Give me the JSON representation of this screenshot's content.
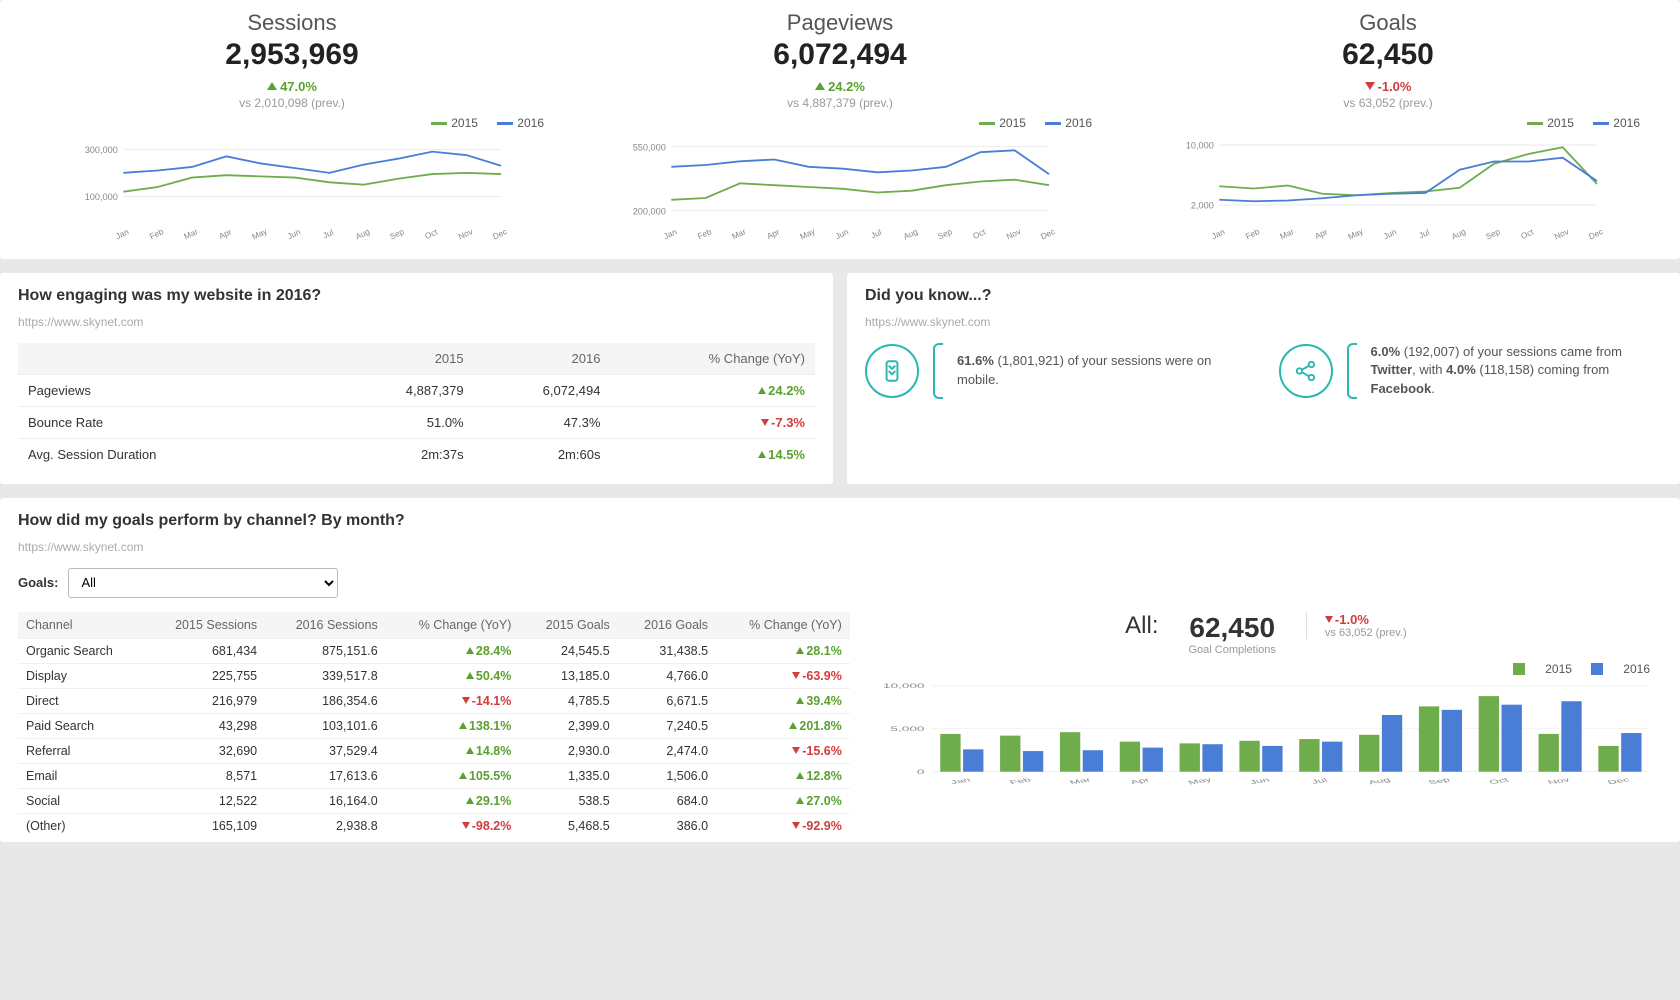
{
  "colors": {
    "series2015": "#6fad4c",
    "series2016": "#4a7dd6",
    "grid": "#e8e8e8",
    "axis": "#999"
  },
  "months": [
    "Jan",
    "Feb",
    "Mar",
    "Apr",
    "May",
    "Jun",
    "Jul",
    "Aug",
    "Sep",
    "Oct",
    "Nov",
    "Dec"
  ],
  "legend_labels": {
    "y2015": "2015",
    "y2016": "2016"
  },
  "metrics": {
    "sessions": {
      "title": "Sessions",
      "value": "2,953,969",
      "delta_pct": "47.0%",
      "delta_dir": "up",
      "delta_color": "green",
      "vs_prev": "vs 2,010,098 (prev.)",
      "yticks": [
        "100,000",
        "300,000"
      ],
      "ylim": [
        0,
        350000
      ],
      "s2015": [
        120000,
        140000,
        180000,
        190000,
        185000,
        180000,
        160000,
        150000,
        175000,
        195000,
        200000,
        195000
      ],
      "s2016": [
        200000,
        210000,
        225000,
        270000,
        240000,
        220000,
        200000,
        235000,
        260000,
        290000,
        275000,
        230000
      ]
    },
    "pageviews": {
      "title": "Pageviews",
      "value": "6,072,494",
      "delta_pct": "24.2%",
      "delta_dir": "up",
      "delta_color": "green",
      "vs_prev": "vs 4,887,379 (prev.)",
      "yticks": [
        "200,000",
        "550,000"
      ],
      "ylim": [
        150000,
        600000
      ],
      "s2015": [
        260000,
        270000,
        350000,
        340000,
        330000,
        320000,
        300000,
        310000,
        340000,
        360000,
        370000,
        340000
      ],
      "s2016": [
        440000,
        450000,
        470000,
        480000,
        440000,
        430000,
        410000,
        420000,
        440000,
        520000,
        530000,
        400000
      ]
    },
    "goals": {
      "title": "Goals",
      "value": "62,450",
      "delta_pct": "-1.0%",
      "delta_dir": "down",
      "delta_color": "red",
      "vs_prev": "vs 63,052 (prev.)",
      "yticks": [
        "2,000",
        "10,000"
      ],
      "ylim": [
        0,
        11000
      ],
      "s2015": [
        4500,
        4200,
        4600,
        3500,
        3300,
        3600,
        3800,
        4300,
        7500,
        8800,
        9700,
        4800
      ],
      "s2016": [
        2700,
        2500,
        2600,
        2900,
        3300,
        3500,
        3600,
        6700,
        7800,
        7800,
        8300,
        5200
      ]
    }
  },
  "engagement": {
    "title": "How engaging was my website in 2016?",
    "url": "https://www.skynet.com",
    "columns": [
      "",
      "2015",
      "2016",
      "% Change (YoY)"
    ],
    "rows": [
      {
        "label": "Pageviews",
        "y2015": "4,887,379",
        "y2016": "6,072,494",
        "pct": "24.2%",
        "dir": "up",
        "color": "green"
      },
      {
        "label": "Bounce Rate",
        "y2015": "51.0%",
        "y2016": "47.3%",
        "pct": "-7.3%",
        "dir": "down",
        "color": "red"
      },
      {
        "label": "Avg. Session Duration",
        "y2015": "2m:37s",
        "y2016": "2m:60s",
        "pct": "14.5%",
        "dir": "up",
        "color": "green"
      }
    ]
  },
  "did_you_know": {
    "title": "Did you know...?",
    "url": "https://www.skynet.com",
    "items": [
      {
        "icon": "mobile-icon",
        "html": "<b>61.6%</b> (1,801,921) of your sessions were on mobile."
      },
      {
        "icon": "share-icon",
        "html": "<b>6.0%</b> (192,007) of your sessions came from <b>Twitter</b>, with <b>4.0%</b> (118,158) coming from <b>Facebook</b>."
      }
    ]
  },
  "goals_section": {
    "title": "How did my goals perform by channel? By month?",
    "url": "https://www.skynet.com",
    "goals_label": "Goals:",
    "select_value": "All",
    "summary": {
      "all_label": "All:",
      "value": "62,450",
      "sub": "Goal Completions",
      "delta_pct": "-1.0%",
      "delta_dir": "down",
      "delta_color": "red",
      "vs_prev": "vs 63,052 (prev.)"
    },
    "table": {
      "columns": [
        "Channel",
        "2015 Sessions",
        "2016 Sessions",
        "% Change (YoY)",
        "2015 Goals",
        "2016 Goals",
        "% Change (YoY)"
      ],
      "rows": [
        {
          "c": "Organic Search",
          "s15": "681,434",
          "s16": "875,151.6",
          "sPct": "28.4%",
          "sDir": "up",
          "sCol": "green",
          "g15": "24,545.5",
          "g16": "31,438.5",
          "gPct": "28.1%",
          "gDir": "up",
          "gCol": "green"
        },
        {
          "c": "Display",
          "s15": "225,755",
          "s16": "339,517.8",
          "sPct": "50.4%",
          "sDir": "up",
          "sCol": "green",
          "g15": "13,185.0",
          "g16": "4,766.0",
          "gPct": "-63.9%",
          "gDir": "down",
          "gCol": "red"
        },
        {
          "c": "Direct",
          "s15": "216,979",
          "s16": "186,354.6",
          "sPct": "-14.1%",
          "sDir": "down",
          "sCol": "red",
          "g15": "4,785.5",
          "g16": "6,671.5",
          "gPct": "39.4%",
          "gDir": "up",
          "gCol": "green"
        },
        {
          "c": "Paid Search",
          "s15": "43,298",
          "s16": "103,101.6",
          "sPct": "138.1%",
          "sDir": "up",
          "sCol": "green",
          "g15": "2,399.0",
          "g16": "7,240.5",
          "gPct": "201.8%",
          "gDir": "up",
          "gCol": "green"
        },
        {
          "c": "Referral",
          "s15": "32,690",
          "s16": "37,529.4",
          "sPct": "14.8%",
          "sDir": "up",
          "sCol": "green",
          "g15": "2,930.0",
          "g16": "2,474.0",
          "gPct": "-15.6%",
          "gDir": "down",
          "gCol": "red"
        },
        {
          "c": "Email",
          "s15": "8,571",
          "s16": "17,613.6",
          "sPct": "105.5%",
          "sDir": "up",
          "sCol": "green",
          "g15": "1,335.0",
          "g16": "1,506.0",
          "gPct": "12.8%",
          "gDir": "up",
          "gCol": "green"
        },
        {
          "c": "Social",
          "s15": "12,522",
          "s16": "16,164.0",
          "sPct": "29.1%",
          "sDir": "up",
          "sCol": "green",
          "g15": "538.5",
          "g16": "684.0",
          "gPct": "27.0%",
          "gDir": "up",
          "gCol": "green"
        },
        {
          "c": "(Other)",
          "s15": "165,109",
          "s16": "2,938.8",
          "sPct": "-98.2%",
          "sDir": "down",
          "sCol": "red",
          "g15": "5,468.5",
          "g16": "386.0",
          "gPct": "-92.9%",
          "gDir": "down",
          "gCol": "red"
        }
      ]
    },
    "bar_chart": {
      "yticks": [
        "0",
        "5,000",
        "10,000"
      ],
      "ylim": [
        0,
        10500
      ],
      "s2015": [
        4400,
        4200,
        4600,
        3500,
        3300,
        3600,
        3800,
        4300,
        7600,
        8800,
        4400,
        3000
      ],
      "s2016": [
        2600,
        2400,
        2500,
        2800,
        3200,
        3000,
        3500,
        6600,
        7200,
        7800,
        8200,
        4500
      ]
    }
  }
}
